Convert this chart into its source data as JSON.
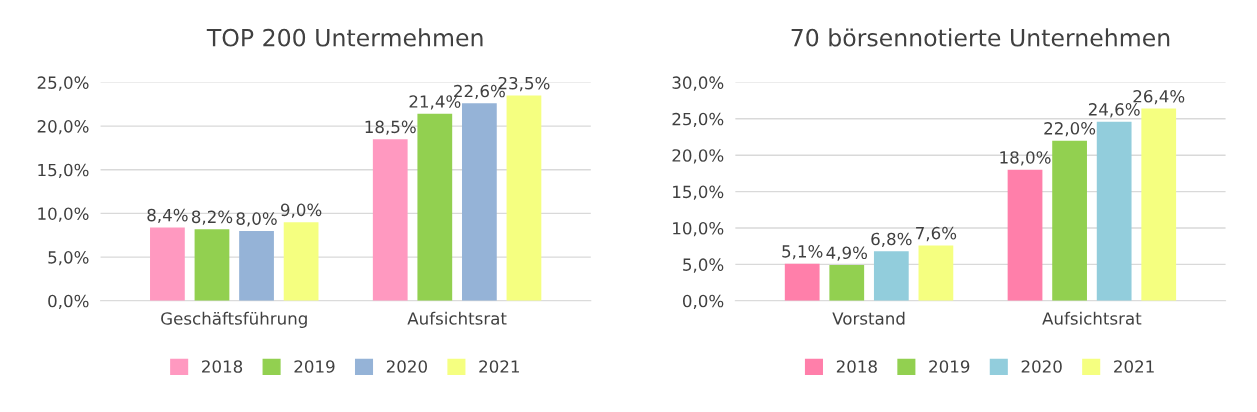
{
  "chart_data": [
    {
      "type": "bar",
      "title": "TOP 200 Untermehmen",
      "categories": [
        "Geschäftsführung",
        "Aufsichtsrat"
      ],
      "series": [
        {
          "name": "2018",
          "color": "#ff99c0",
          "values": [
            8.4,
            18.5
          ],
          "value_labels": [
            "8,4%",
            "18,5%"
          ]
        },
        {
          "name": "2019",
          "color": "#92d050",
          "values": [
            8.2,
            21.4
          ],
          "value_labels": [
            "8,2%",
            "21,4%"
          ]
        },
        {
          "name": "2020",
          "color": "#95b3d7",
          "values": [
            8.0,
            22.6
          ],
          "value_labels": [
            "8,0%",
            "22,6%"
          ]
        },
        {
          "name": "2021",
          "color": "#f5ff80",
          "values": [
            9.0,
            23.5
          ],
          "value_labels": [
            "9,0%",
            "23,5%"
          ]
        }
      ],
      "ylim": [
        0,
        25
      ],
      "yticks": [
        {
          "value": 0,
          "label": "0,0%"
        },
        {
          "value": 5,
          "label": "5,0%"
        },
        {
          "value": 10,
          "label": "10,0%"
        },
        {
          "value": 15,
          "label": "15,0%"
        },
        {
          "value": 20,
          "label": "20,0%"
        },
        {
          "value": 25,
          "label": "25,0%"
        }
      ],
      "grid": "y",
      "legend": "bottom"
    },
    {
      "type": "bar",
      "title": "70 börsennotierte Unternehmen",
      "categories": [
        "Vorstand",
        "Aufsichtsrat"
      ],
      "series": [
        {
          "name": "2018",
          "color": "#ff7faa",
          "values": [
            5.1,
            18.0
          ],
          "value_labels": [
            "5,1%",
            "18,0%"
          ]
        },
        {
          "name": "2019",
          "color": "#92d050",
          "values": [
            4.9,
            22.0
          ],
          "value_labels": [
            "4,9%",
            "22,0%"
          ]
        },
        {
          "name": "2020",
          "color": "#92cddc",
          "values": [
            6.8,
            24.6
          ],
          "value_labels": [
            "6,8%",
            "24,6%"
          ]
        },
        {
          "name": "2021",
          "color": "#f5ff80",
          "values": [
            7.6,
            26.4
          ],
          "value_labels": [
            "7,6%",
            "26,4%"
          ]
        }
      ],
      "ylim": [
        0,
        30
      ],
      "yticks": [
        {
          "value": 0,
          "label": "0,0%"
        },
        {
          "value": 5,
          "label": "5,0%"
        },
        {
          "value": 10,
          "label": "10,0%"
        },
        {
          "value": 15,
          "label": "15,0%"
        },
        {
          "value": 20,
          "label": "20,0%"
        },
        {
          "value": 25,
          "label": "25,0%"
        },
        {
          "value": 30,
          "label": "30,0%"
        }
      ],
      "grid": "y",
      "legend": "bottom"
    }
  ]
}
